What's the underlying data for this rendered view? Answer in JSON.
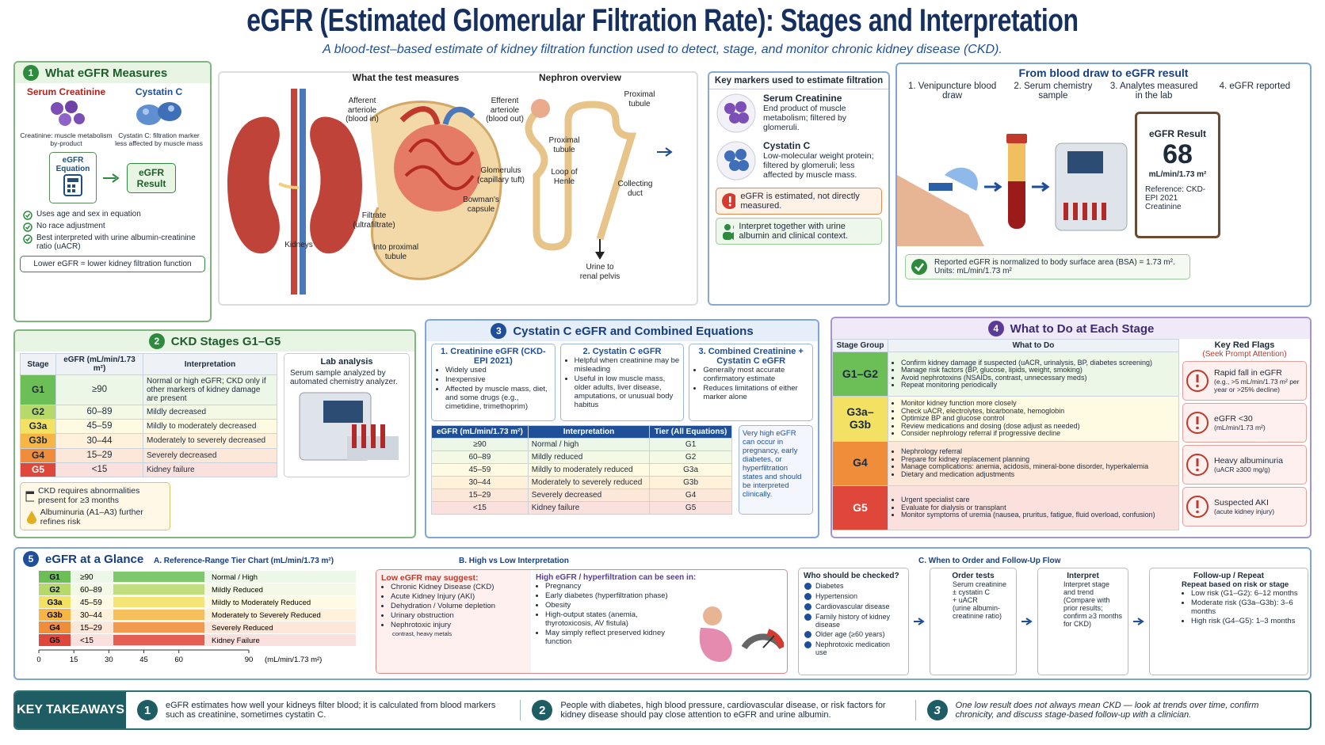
{
  "header": {
    "title": "eGFR (Estimated Glomerular Filtration Rate): Stages and Interpretation",
    "subtitle": "A blood-test–based estimate of kidney filtration function used to detect, stage, and monitor chronic kidney disease (CKD)."
  },
  "measures": {
    "number": "1",
    "title": "What eGFR Measures",
    "serum": "Serum Creatinine",
    "serum_note": "Creatinine: muscle metabolism by-product",
    "cystatin": "Cystatin C",
    "cystatin_note": "Cystatin C: filtration marker less affected by muscle mass",
    "equation": "eGFR Equation",
    "result": "eGFR Result",
    "checks": [
      "Uses age and sex in equation",
      "No race adjustment",
      "Best interpreted with urine albumin-creatinine ratio (uACR)"
    ],
    "footer": "Lower eGFR = lower kidney filtration function"
  },
  "anatomy": {
    "test_title": "What the test measures",
    "nephron_title": "Nephron overview",
    "kidneys": "Kidneys",
    "afferent": "Afferent arteriole (blood in)",
    "efferent": "Efferent arteriole (blood out)",
    "glomerulus": "Glomerulus (capillary tuft)",
    "bowman": "Bowman's capsule",
    "filtrate": "Filtrate (ultrafiltrate)",
    "into_tubule": "Into proximal tubule",
    "proximal_top": "Proximal tubule",
    "proximal_left": "Proximal tubule",
    "loop": "Loop of Henle",
    "collecting": "Collecting duct",
    "urine": "Urine to renal pelvis"
  },
  "markers": {
    "title": "Key markers used to estimate filtration",
    "items": [
      {
        "name": "Serum Creatinine",
        "desc": "End product of muscle metabolism; filtered by glomeruli."
      },
      {
        "name": "Cystatin C",
        "desc": "Low-molecular weight protein; filtered by glomeruli; less affected by muscle mass."
      }
    ],
    "alert": "eGFR is estimated, not directly measured.",
    "interpret": "Interpret together with urine albumin and clinical context."
  },
  "flow": {
    "title": "From blood draw to eGFR result",
    "steps": [
      "1. Venipuncture blood draw",
      "2. Serum chemistry sample",
      "3. Analytes measured in the lab",
      "4. eGFR reported"
    ],
    "card_title": "eGFR Result",
    "card_value": "68",
    "card_unit": "mL/min/1.73 m²",
    "card_ref": "Reference: CKD-EPI 2021 Creatinine",
    "note": "Reported eGFR is normalized to body surface area (BSA) = 1.73 m².",
    "note_units": "Units: mL/min/1.73 m²"
  },
  "stages": {
    "number": "2",
    "title": "CKD Stages G1–G5",
    "headers": [
      "Stage",
      "eGFR (mL/min/1.73 m²)",
      "Interpretation"
    ],
    "rows": [
      [
        "G1",
        "≥90",
        "Normal or high eGFR; CKD only if other markers of kidney damage are present"
      ],
      [
        "G2",
        "60–89",
        "Mildly decreased"
      ],
      [
        "G3a",
        "45–59",
        "Mildly to moderately decreased"
      ],
      [
        "G3b",
        "30–44",
        "Moderately to severely decreased"
      ],
      [
        "G4",
        "15–29",
        "Severely decreased"
      ],
      [
        "G5",
        "<15",
        "Kidney failure"
      ]
    ],
    "lab_title": "Lab analysis",
    "lab_text": "Serum sample analyzed by automated chemistry analyzer.",
    "note_months": "CKD requires abnormalities present for ≥3 months",
    "note_albumin": "Albuminuria (A1–A3) further refines risk"
  },
  "cystatin": {
    "number": "3",
    "title": "Cystatin C eGFR and Combined Equations",
    "cards": [
      {
        "title": "1. Creatinine eGFR (CKD-EPI 2021)",
        "items": [
          "Widely used",
          "Inexpensive",
          "Affected by muscle mass, diet, and some drugs (e.g., cimetidine, trimethoprim)"
        ]
      },
      {
        "title": "2. Cystatin C eGFR",
        "items": [
          "Helpful when creatinine may be misleading",
          "Useful in low muscle mass, older adults, liver disease, amputations, or unusual body habitus"
        ]
      },
      {
        "title": "3. Combined Creatinine + Cystatin C eGFR",
        "items": [
          "Generally most accurate confirmatory estimate",
          "Reduces limitations of either marker alone"
        ]
      }
    ],
    "headers": [
      "eGFR (mL/min/1.73 m²)",
      "Interpretation",
      "Tier (All Equations)"
    ],
    "rows": [
      [
        "≥90",
        "Normal / high",
        "G1"
      ],
      [
        "60–89",
        "Mildly reduced",
        "G2"
      ],
      [
        "45–59",
        "Mildly to moderately reduced",
        "G3a"
      ],
      [
        "30–44",
        "Moderately to severely reduced",
        "G3b"
      ],
      [
        "15–29",
        "Severely decreased",
        "G4"
      ],
      [
        "<15",
        "Kidney failure",
        "G5"
      ]
    ],
    "note": "Very high eGFR can occur in pregnancy, early diabetes, or hyperfiltration states and should be interpreted clinically."
  },
  "actions": {
    "number": "4",
    "title": "What to Do at Each Stage",
    "headers": [
      "Stage Group",
      "What to Do"
    ],
    "rows": [
      {
        "group": "G1–G2",
        "items": [
          "Confirm kidney damage if suspected (uACR, urinalysis, BP, diabetes screening)",
          "Manage risk factors (BP, glucose, lipids, weight, smoking)",
          "Avoid nephrotoxins (NSAIDs, contrast, unnecessary meds)",
          "Repeat monitoring periodically"
        ]
      },
      {
        "group": "G3a–G3b",
        "items": [
          "Monitor kidney function more closely",
          "Check uACR, electrolytes, bicarbonate, hemoglobin",
          "Optimize BP and glucose control",
          "Review medications and dosing (dose adjust as needed)",
          "Consider nephrology referral if progressive decline"
        ]
      },
      {
        "group": "G4",
        "items": [
          "Nephrology referral",
          "Prepare for kidney replacement planning",
          "Manage complications: anemia, acidosis, mineral-bone disorder, hyperkalemia",
          "Dietary and medication adjustments"
        ]
      },
      {
        "group": "G5",
        "items": [
          "Urgent specialist care",
          "Evaluate for dialysis or transplant",
          "Monitor symptoms of uremia (nausea, pruritus, fatigue, fluid overload, confusion)"
        ]
      }
    ],
    "flags_title": "Key Red Flags",
    "flags_subtitle": "(Seek Prompt Attention)",
    "flags": [
      {
        "title": "Rapid fall in eGFR",
        "desc": "(e.g., >5 mL/min/1.73 m² per year or >25% decline)"
      },
      {
        "title": "eGFR <30",
        "desc": "(mL/min/1.73 m²)"
      },
      {
        "title": "Heavy albuminuria",
        "desc": "(uACR ≥300 mg/g)"
      },
      {
        "title": "Suspected AKI",
        "desc": "(acute kidney injury)"
      }
    ]
  },
  "glance": {
    "number": "5",
    "title": "eGFR at a Glance",
    "tier_title": "A. Reference-Range Tier Chart (mL/min/1.73 m²)",
    "tiers": [
      [
        "G1",
        "≥90",
        "Normal / High"
      ],
      [
        "G2",
        "60–89",
        "Mildly Reduced"
      ],
      [
        "G3a",
        "45–59",
        "Mildly to Moderately Reduced"
      ],
      [
        "G3b",
        "30–44",
        "Moderately to Severely Reduced"
      ],
      [
        "G4",
        "15–29",
        "Severely Reduced"
      ],
      [
        "G5",
        "<15",
        "Kidney Failure"
      ]
    ],
    "xlim": [
      0,
      90
    ],
    "xticks": [
      0,
      15,
      30,
      45,
      60,
      90
    ],
    "xunit": "(mL/min/1.73 m²)",
    "hilo_title": "B. High vs Low Interpretation",
    "low_title": "Low eGFR may suggest:",
    "low_items": [
      "Chronic Kidney Disease (CKD)",
      "Acute Kidney Injury (AKI)",
      "Dehydration / Volume depletion",
      "Urinary obstruction",
      "Nephrotoxic injury"
    ],
    "low_note": "contrast, heavy metals",
    "high_title": "High eGFR / hyperfiltration can be seen in:",
    "high_items": [
      "Pregnancy",
      "Early diabetes (hyperfiltration phase)",
      "Obesity",
      "High-output states (anemia, thyrotoxicosis, AV fistula)",
      "May simply reflect preserved kidney function"
    ],
    "flow_title": "C. When to Order and Follow-Up Flow",
    "who_title": "Who should be checked?",
    "who_items": [
      "Diabetes",
      "Hypertension",
      "Cardiovascular disease",
      "Family history of kidney disease",
      "Older age (≥60 years)",
      "Nephrotoxic medication use"
    ],
    "order_title": "Order tests",
    "order_items": [
      "Serum creatinine",
      "± cystatin C",
      "+ uACR",
      "(urine albumin-creatinine ratio)"
    ],
    "interpret_title": "Interpret",
    "interpret_items": [
      "Interpret stage and trend",
      "(Compare with prior results; confirm ≥3 months for CKD)"
    ],
    "follow_title": "Follow-up / Repeat",
    "follow_text": "Repeat based on risk or stage",
    "follow_items": [
      "Low risk (G1–G2): 6–12 months",
      "Moderate risk (G3a–G3b): 3–6 months",
      "High risk (G4–G5): 1–3 months"
    ]
  },
  "takeaways": {
    "label": "KEY TAKEAWAYS",
    "items": [
      {
        "number": "1",
        "text": "eGFR estimates how well your kidneys filter blood; it is calculated from blood markers such as creatinine, sometimes cystatin C."
      },
      {
        "number": "2",
        "text": "People with diabetes, high blood pressure, cardiovascular disease, or risk factors for kidney disease should pay close attention to eGFR and urine albumin."
      },
      {
        "number": "3",
        "text": "One low result does not always mean CKD — look at trends over time, confirm chronicity, and discuss stage-based follow-up with a clinician."
      }
    ]
  }
}
